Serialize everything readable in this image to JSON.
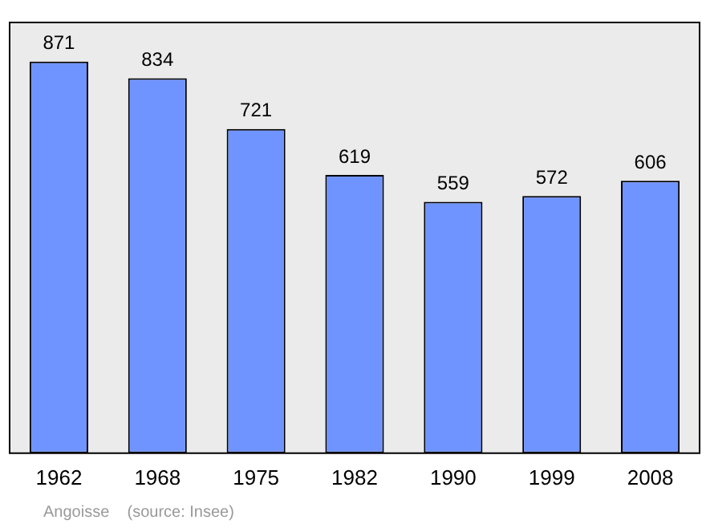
{
  "chart_data": {
    "type": "bar",
    "categories": [
      "1962",
      "1968",
      "1975",
      "1982",
      "1990",
      "1999",
      "2008"
    ],
    "values": [
      871,
      834,
      721,
      619,
      559,
      572,
      606
    ],
    "color": "#7094ff",
    "data_labels": true,
    "grid": false,
    "legend": false,
    "annotations": [
      "Angoisse    (source: Insee)"
    ]
  }
}
